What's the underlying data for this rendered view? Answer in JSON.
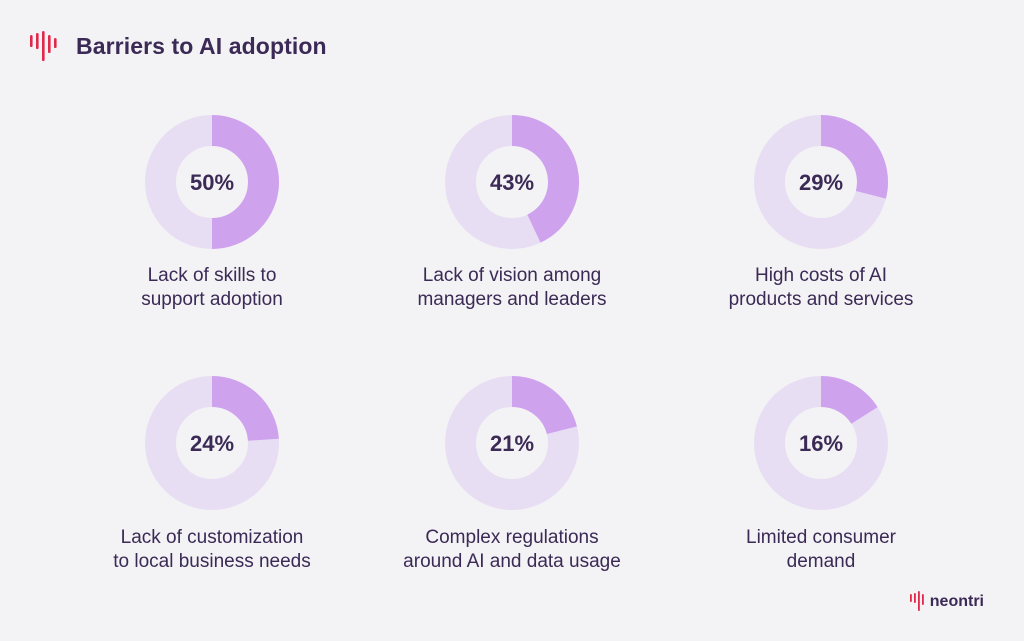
{
  "title": "Barriers to AI adoption",
  "brand": {
    "name": "neontri",
    "logo_icon": "neontri-waveform-icon"
  },
  "colors": {
    "filled": "#cfa2ee",
    "track": "#e8def4",
    "text": "#3b2a55",
    "accent": "#e0284a",
    "background": "#f3f2f5"
  },
  "chart_data": {
    "type": "pie",
    "variant": "donut-grid",
    "title": "Barriers to AI adoption",
    "items": [
      {
        "label_lines": [
          "Lack of skills to",
          "support adoption"
        ],
        "value": 50,
        "display": "50%"
      },
      {
        "label_lines": [
          "Lack of vision among",
          "managers and leaders"
        ],
        "value": 43,
        "display": "43%"
      },
      {
        "label_lines": [
          "High costs of AI",
          "products and services"
        ],
        "value": 29,
        "display": "29%"
      },
      {
        "label_lines": [
          "Lack of customization",
          "to local business needs"
        ],
        "value": 24,
        "display": "24%"
      },
      {
        "label_lines": [
          "Complex regulations",
          "around AI and data usage"
        ],
        "value": 21,
        "display": "21%"
      },
      {
        "label_lines": [
          "Limited consumer",
          "demand"
        ],
        "value": 16,
        "display": "16%"
      }
    ]
  }
}
